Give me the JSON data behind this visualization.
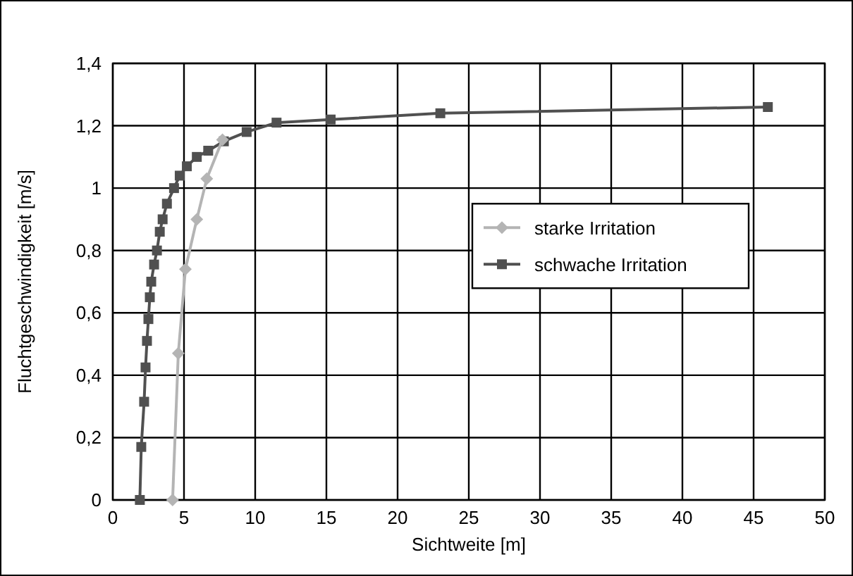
{
  "chart_data": {
    "type": "line",
    "xlabel": "Sichtweite [m]",
    "ylabel": "Fluchtgeschwindigkeit [m/s]",
    "xlim": [
      0,
      50
    ],
    "xticks": [
      0,
      5,
      10,
      15,
      20,
      25,
      30,
      35,
      40,
      45,
      50
    ],
    "ylim": [
      0,
      1.4
    ],
    "yticks": [
      {
        "value": 0,
        "label": "0"
      },
      {
        "value": 0.2,
        "label": "0,2"
      },
      {
        "value": 0.4,
        "label": "0,4"
      },
      {
        "value": 0.6,
        "label": "0,6"
      },
      {
        "value": 0.8,
        "label": "0,8"
      },
      {
        "value": 1,
        "label": "1"
      },
      {
        "value": 1.2,
        "label": "1,2"
      },
      {
        "value": 1.4,
        "label": "1,4"
      }
    ],
    "grid": true,
    "legend": "right",
    "series": [
      {
        "name": "starke Irritation",
        "color": "#b4b4b4",
        "marker": "diamond",
        "x": [
          4.2,
          4.6,
          5.1,
          5.9,
          6.6,
          7.7
        ],
        "values": [
          0,
          0.47,
          0.74,
          0.9,
          1.03,
          1.155
        ]
      },
      {
        "name": "schwache Irritation",
        "color": "#505050",
        "marker": "square",
        "x": [
          1.9,
          2.0,
          2.2,
          2.3,
          2.4,
          2.5,
          2.6,
          2.7,
          2.9,
          3.1,
          3.3,
          3.5,
          3.8,
          4.3,
          4.7,
          5.2,
          5.9,
          6.7,
          7.8,
          9.4,
          11.5,
          15.3,
          23,
          46
        ],
        "values": [
          0,
          0.17,
          0.315,
          0.425,
          0.51,
          0.58,
          0.65,
          0.7,
          0.755,
          0.8,
          0.86,
          0.9,
          0.95,
          1.0,
          1.04,
          1.07,
          1.1,
          1.12,
          1.15,
          1.18,
          1.21,
          1.22,
          1.24,
          1.26
        ]
      }
    ]
  }
}
